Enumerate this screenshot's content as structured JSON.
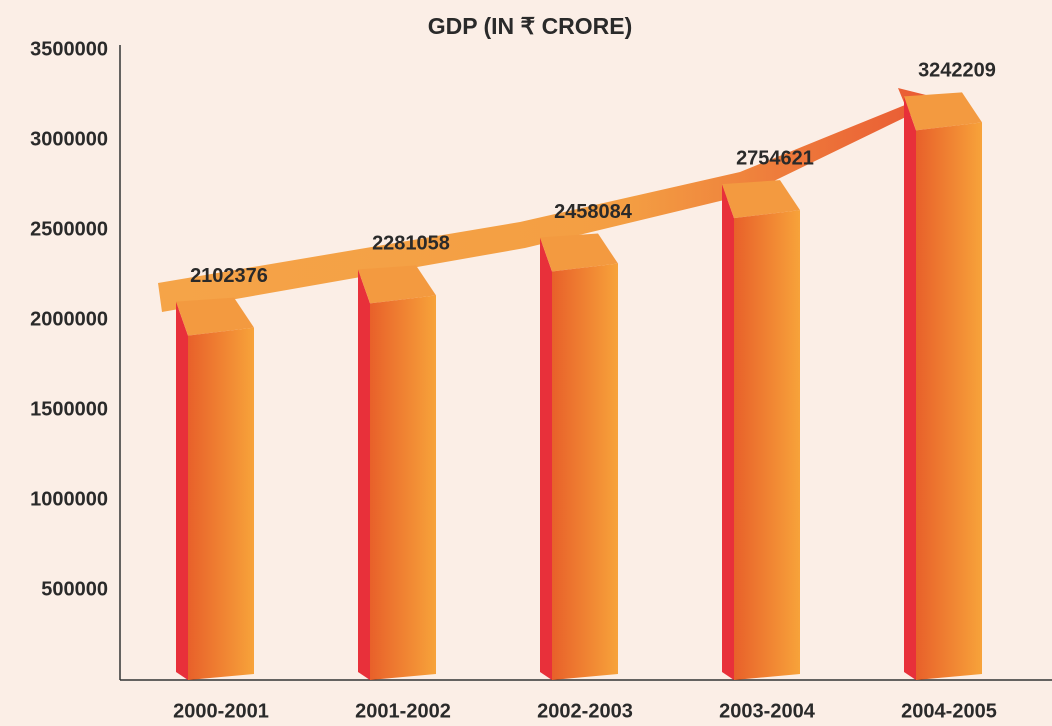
{
  "chart_data": {
    "type": "bar3d",
    "title": "GDP (IN ₹ CRORE)",
    "categories": [
      "2000-2001",
      "2001-2002",
      "2002-2003",
      "2003-2004",
      "2004-2005"
    ],
    "values": [
      2102376,
      2281058,
      2458084,
      2754621,
      3242209
    ],
    "color": "#f07a2a",
    "side_color": "#e8303a",
    "ylim": [
      0,
      3500000
    ],
    "yticks": [
      500000,
      1000000,
      1500000,
      2000000,
      2500000,
      3000000,
      3500000
    ],
    "grid": false
  }
}
